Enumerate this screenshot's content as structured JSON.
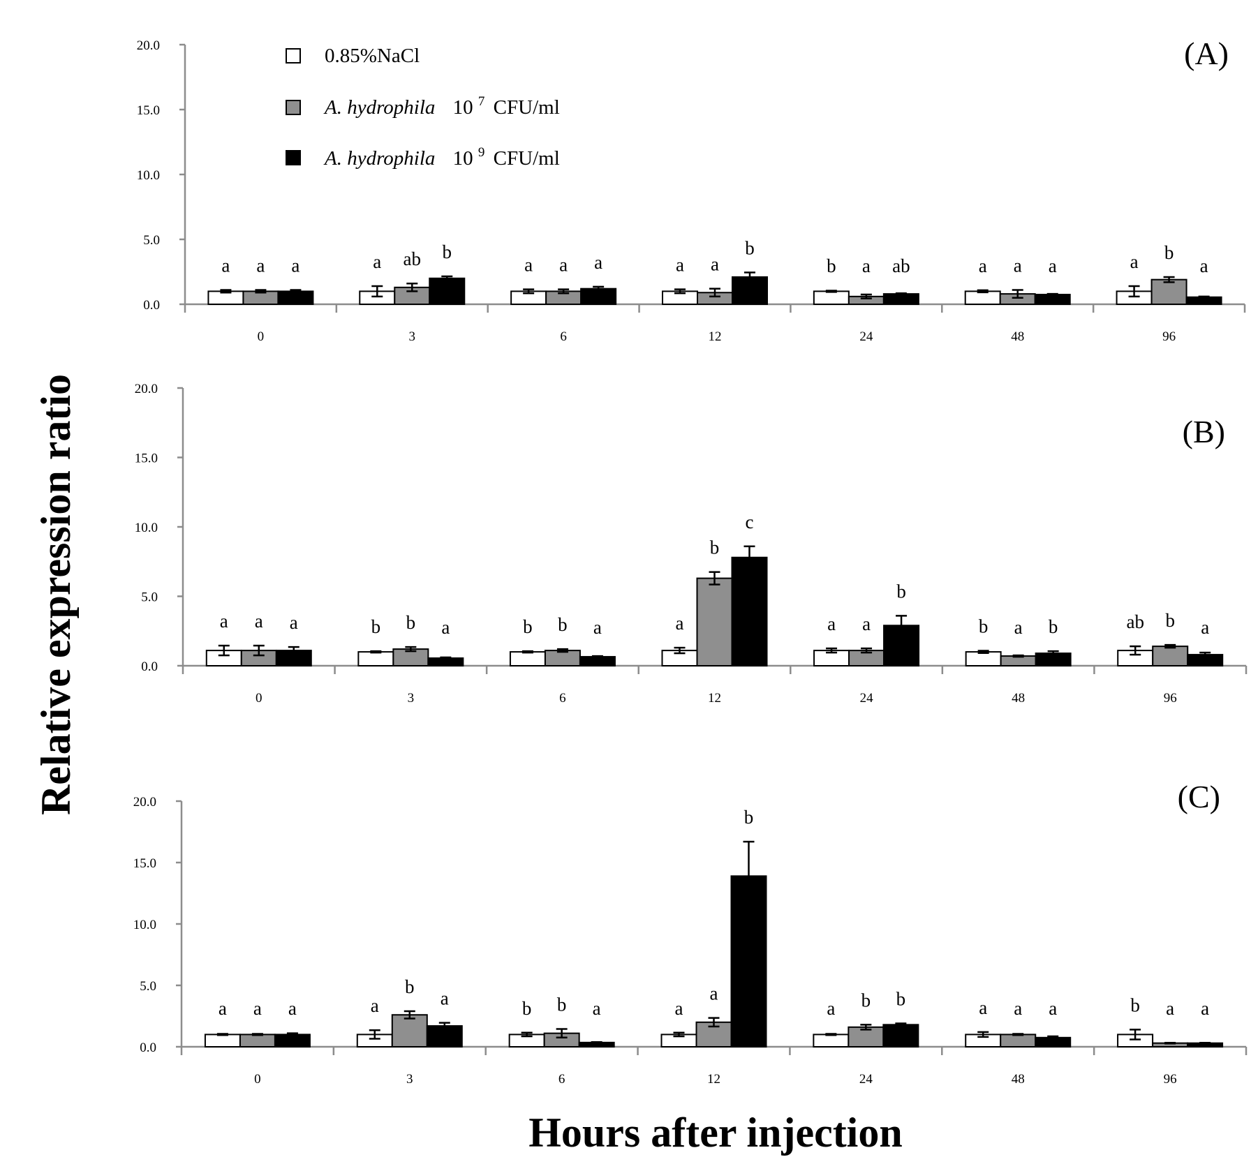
{
  "ylabel": "Relative expression ratio",
  "xlabel": "Hours after injection",
  "legend": {
    "items": [
      {
        "name": "0.85%NaCl",
        "italic": "",
        "label": "0.85%NaCl",
        "exp": "",
        "unit": "",
        "color": "#ffffff"
      },
      {
        "name": "A. hydrophila 10^7 CFU/ml",
        "italic": "A. hydrophila",
        "label": "10",
        "exp": "7",
        "unit": "CFU/ml",
        "color": "#8f8f8f"
      },
      {
        "name": "A. hydrophila 10^9 CFU/ml",
        "italic": "A. hydrophila",
        "label": "10",
        "exp": "9",
        "unit": "CFU/ml",
        "color": "#000000"
      }
    ]
  },
  "chart_data": [
    {
      "type": "bar",
      "panel_label": "(A)",
      "categories": [
        "0",
        "3",
        "6",
        "12",
        "24",
        "48",
        "96"
      ],
      "yticks": [
        "0.0",
        "5.0",
        "10.0",
        "15.0",
        "20.0"
      ],
      "ylim": [
        0,
        20
      ],
      "series": [
        {
          "name": "0.85%NaCl",
          "values": [
            1.0,
            1.0,
            1.0,
            1.0,
            1.0,
            1.0,
            1.0
          ],
          "errors": [
            0.1,
            0.4,
            0.15,
            0.15,
            0.05,
            0.08,
            0.4
          ],
          "letters": [
            "a",
            "a",
            "a",
            "a",
            "b",
            "a",
            "a"
          ]
        },
        {
          "name": "A. hydrophila 10^7 CFU/ml",
          "values": [
            1.0,
            1.3,
            1.0,
            0.9,
            0.6,
            0.8,
            1.9
          ],
          "errors": [
            0.1,
            0.3,
            0.15,
            0.3,
            0.15,
            0.3,
            0.2
          ],
          "letters": [
            "a",
            "ab",
            "a",
            "a",
            "a",
            "a",
            "b"
          ]
        },
        {
          "name": "A. hydrophila 10^9 CFU/ml",
          "values": [
            1.0,
            2.0,
            1.2,
            2.1,
            0.8,
            0.75,
            0.55
          ],
          "errors": [
            0.1,
            0.15,
            0.15,
            0.35,
            0.05,
            0.05,
            0.05
          ],
          "letters": [
            "a",
            "b",
            "a",
            "b",
            "ab",
            "a",
            "a"
          ]
        }
      ]
    },
    {
      "type": "bar",
      "panel_label": "(B)",
      "categories": [
        "0",
        "3",
        "6",
        "12",
        "24",
        "48",
        "96"
      ],
      "yticks": [
        "0.0",
        "5.0",
        "10.0",
        "15.0",
        "20.0"
      ],
      "ylim": [
        0,
        20
      ],
      "series": [
        {
          "name": "0.85%NaCl",
          "values": [
            1.1,
            1.0,
            1.0,
            1.1,
            1.1,
            1.0,
            1.1
          ],
          "errors": [
            0.35,
            0.05,
            0.05,
            0.2,
            0.15,
            0.08,
            0.3
          ],
          "letters": [
            "a",
            "b",
            "b",
            "a",
            "a",
            "b",
            "ab"
          ]
        },
        {
          "name": "A. hydrophila 10^7 CFU/ml",
          "values": [
            1.1,
            1.2,
            1.1,
            6.3,
            1.1,
            0.7,
            1.4
          ],
          "errors": [
            0.35,
            0.15,
            0.1,
            0.45,
            0.15,
            0.05,
            0.1
          ],
          "letters": [
            "a",
            "b",
            "b",
            "b",
            "a",
            "a",
            "b"
          ]
        },
        {
          "name": "A. hydrophila 10^9 CFU/ml",
          "values": [
            1.1,
            0.55,
            0.65,
            7.8,
            2.9,
            0.9,
            0.8
          ],
          "errors": [
            0.25,
            0.05,
            0.05,
            0.8,
            0.7,
            0.15,
            0.15
          ],
          "letters": [
            "a",
            "a",
            "a",
            "c",
            "b",
            "b",
            "a"
          ]
        }
      ]
    },
    {
      "type": "bar",
      "panel_label": "(C)",
      "categories": [
        "0",
        "3",
        "6",
        "12",
        "24",
        "48",
        "96"
      ],
      "yticks": [
        "0.0",
        "5.0",
        "10.0",
        "15.0",
        "20.0"
      ],
      "ylim": [
        0,
        20
      ],
      "series": [
        {
          "name": "0.85%NaCl",
          "values": [
            1.0,
            1.0,
            1.0,
            1.0,
            1.0,
            1.0,
            1.0
          ],
          "errors": [
            0.05,
            0.35,
            0.15,
            0.15,
            0.05,
            0.2,
            0.4
          ],
          "letters": [
            "a",
            "a",
            "b",
            "a",
            "a",
            "a",
            "b"
          ]
        },
        {
          "name": "A. hydrophila 10^7 CFU/ml",
          "values": [
            1.0,
            2.6,
            1.1,
            2.0,
            1.6,
            1.0,
            0.3
          ],
          "errors": [
            0.05,
            0.3,
            0.35,
            0.35,
            0.2,
            0.05,
            0.03
          ],
          "letters": [
            "a",
            "b",
            "b",
            "a",
            "b",
            "a",
            "a"
          ]
        },
        {
          "name": "A. hydrophila 10^9 CFU/ml",
          "values": [
            1.0,
            1.7,
            0.35,
            13.9,
            1.8,
            0.75,
            0.3
          ],
          "errors": [
            0.1,
            0.25,
            0.03,
            2.8,
            0.1,
            0.1,
            0.03
          ],
          "letters": [
            "a",
            "a",
            "a",
            "b",
            "b",
            "a",
            "a"
          ]
        }
      ]
    }
  ]
}
